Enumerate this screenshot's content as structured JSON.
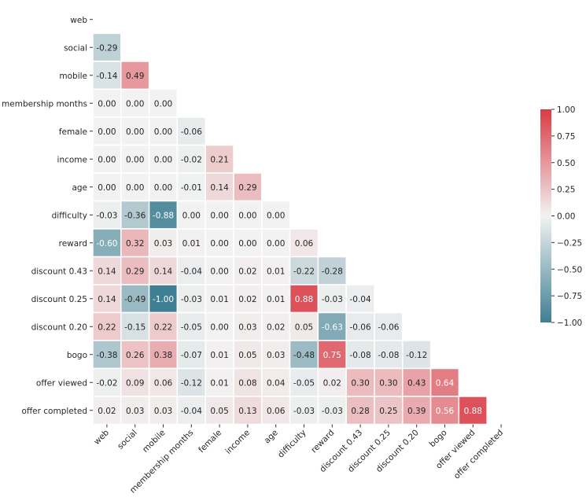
{
  "chart_data": {
    "type": "heatmap",
    "variables": [
      "web",
      "social",
      "mobile",
      "membership months",
      "female",
      "income",
      "age",
      "difficulty",
      "reward",
      "discount 0.43",
      "discount 0.25",
      "discount 0.20",
      "bogo",
      "offer viewed",
      "offer completed"
    ],
    "lower_triangle_values": [
      [],
      [
        -0.29
      ],
      [
        -0.14,
        0.49
      ],
      [
        -0.0,
        -0.0,
        -0.0
      ],
      [
        0.0,
        -0.0,
        -0.0,
        -0.06
      ],
      [
        -0.0,
        0.0,
        0.0,
        -0.02,
        0.21
      ],
      [
        0.0,
        0.0,
        -0.0,
        -0.01,
        0.14,
        0.29
      ],
      [
        -0.03,
        -0.36,
        -0.88,
        0.0,
        0.0,
        -0.0,
        0.0
      ],
      [
        -0.6,
        0.32,
        0.03,
        0.01,
        0.0,
        0.0,
        -0.0,
        0.06
      ],
      [
        0.14,
        0.29,
        0.14,
        -0.04,
        0.0,
        0.02,
        0.01,
        -0.22,
        -0.28
      ],
      [
        0.14,
        -0.49,
        -1.0,
        -0.03,
        0.01,
        0.02,
        0.01,
        0.88,
        -0.03,
        -0.04
      ],
      [
        0.22,
        -0.15,
        0.22,
        -0.05,
        0.0,
        0.03,
        0.02,
        0.05,
        -0.63,
        -0.06,
        -0.06
      ],
      [
        -0.38,
        0.26,
        0.38,
        -0.07,
        0.01,
        0.05,
        0.03,
        -0.48,
        0.75,
        -0.08,
        -0.08,
        -0.12
      ],
      [
        -0.02,
        0.09,
        0.06,
        -0.12,
        0.01,
        0.08,
        0.04,
        -0.05,
        0.02,
        0.3,
        0.3,
        0.43,
        0.64
      ],
      [
        0.02,
        0.03,
        0.03,
        -0.04,
        0.05,
        0.13,
        0.06,
        -0.03,
        -0.03,
        0.28,
        0.25,
        0.39,
        0.56,
        0.88
      ]
    ],
    "mask": "upper-triangle",
    "annotation_format": "0.00",
    "colorbar": {
      "range": [
        -1.0,
        1.0
      ],
      "ticks": [
        "1.00",
        "0.75",
        "0.50",
        "0.25",
        "0.00",
        "−0.25",
        "−0.50",
        "−0.75",
        "−1.00"
      ],
      "tick_values": [
        1.0,
        0.75,
        0.5,
        0.25,
        0.0,
        -0.25,
        -0.5,
        -0.75,
        -1.0
      ],
      "placement": "right"
    },
    "colors": {
      "negative": "#3f7f93",
      "center": "#f2f2f2",
      "positive": "#da3b46"
    }
  }
}
